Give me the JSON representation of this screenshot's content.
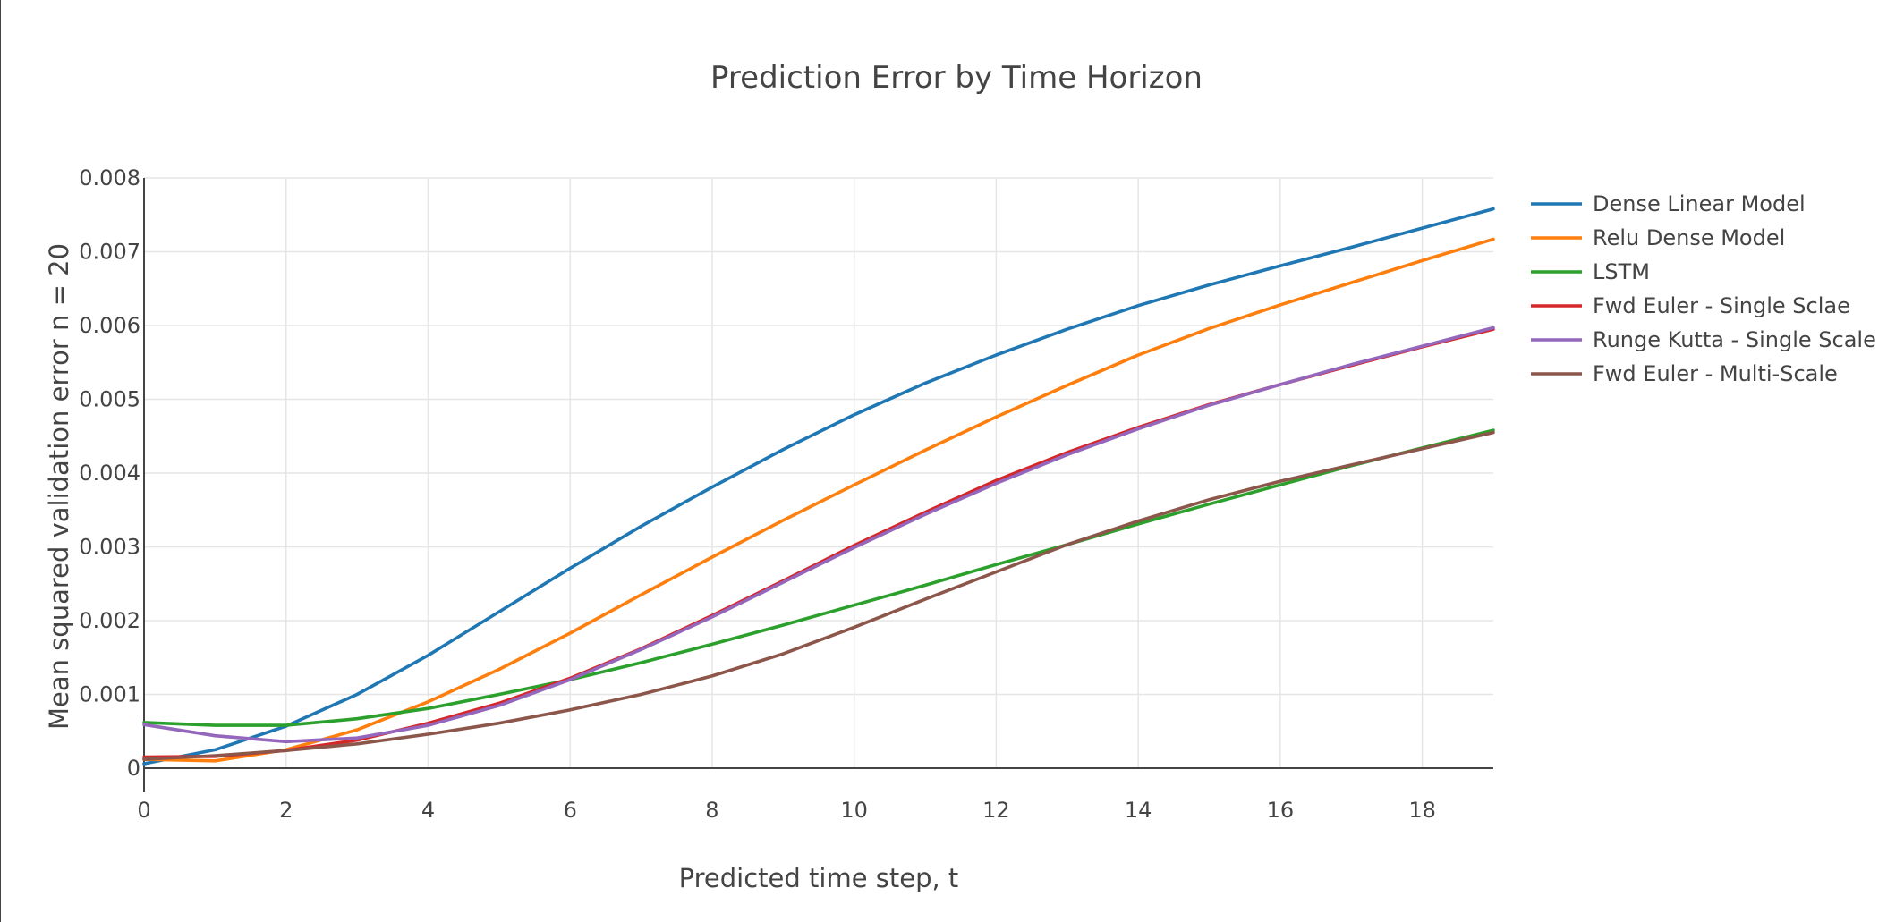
{
  "chart_data": {
    "type": "line",
    "title": "Prediction Error by Time Horizon",
    "xlabel": "Predicted time step, t",
    "ylabel": "Mean squared validation error n = 20",
    "xlim": [
      0,
      19
    ],
    "ylim": [
      0,
      0.008
    ],
    "xticks": [
      0,
      2,
      4,
      6,
      8,
      10,
      12,
      14,
      16,
      18
    ],
    "yticks": [
      0,
      0.001,
      0.002,
      0.003,
      0.004,
      0.005,
      0.006,
      0.007,
      0.008
    ],
    "ytick_labels": [
      "0",
      "0.001",
      "0.002",
      "0.003",
      "0.004",
      "0.005",
      "0.006",
      "0.007",
      "0.008"
    ],
    "grid": true,
    "legend_position": "right",
    "x": [
      0,
      1,
      2,
      3,
      4,
      5,
      6,
      7,
      8,
      9,
      10,
      11,
      12,
      13,
      14,
      15,
      16,
      17,
      18,
      19
    ],
    "series": [
      {
        "name": "Dense Linear Model",
        "color": "#1f77b4",
        "values": [
          6e-05,
          0.00025,
          0.00057,
          0.001,
          0.00153,
          0.00212,
          0.00271,
          0.00328,
          0.00381,
          0.00432,
          0.00479,
          0.00522,
          0.0056,
          0.00595,
          0.00627,
          0.00655,
          0.00681,
          0.00706,
          0.00732,
          0.00758
        ]
      },
      {
        "name": "Relu Dense Model",
        "color": "#ff7f0e",
        "values": [
          0.00012,
          0.0001,
          0.00025,
          0.00052,
          0.0009,
          0.00134,
          0.00183,
          0.00235,
          0.00286,
          0.00336,
          0.00384,
          0.00431,
          0.00476,
          0.00519,
          0.0056,
          0.00596,
          0.00628,
          0.00658,
          0.00688,
          0.00717
        ]
      },
      {
        "name": "LSTM",
        "color": "#2ca02c",
        "values": [
          0.00062,
          0.00058,
          0.00058,
          0.00067,
          0.00081,
          0.001,
          0.0012,
          0.00143,
          0.00168,
          0.00194,
          0.00221,
          0.00248,
          0.00276,
          0.00303,
          0.00331,
          0.00358,
          0.00384,
          0.0041,
          0.00434,
          0.00458
        ]
      },
      {
        "name": "Fwd Euler - Single Sclae",
        "color": "#d62728",
        "values": [
          0.00015,
          0.00016,
          0.00024,
          0.00038,
          0.00061,
          0.00088,
          0.00122,
          0.00162,
          0.00207,
          0.00254,
          0.00302,
          0.00347,
          0.0039,
          0.00428,
          0.00462,
          0.00493,
          0.0052,
          0.00546,
          0.00571,
          0.00595
        ]
      },
      {
        "name": "Runge Kutta - Single Scale",
        "color": "#9467bd",
        "values": [
          0.00059,
          0.00044,
          0.00036,
          0.00041,
          0.00058,
          0.00085,
          0.0012,
          0.00161,
          0.00205,
          0.00252,
          0.00299,
          0.00344,
          0.00386,
          0.00425,
          0.0046,
          0.00492,
          0.0052,
          0.00547,
          0.00572,
          0.00597
        ]
      },
      {
        "name": "Fwd Euler - Multi-Scale",
        "color": "#8c564b",
        "values": [
          0.00012,
          0.00017,
          0.00024,
          0.00033,
          0.00046,
          0.00061,
          0.00079,
          0.001,
          0.00125,
          0.00155,
          0.00191,
          0.00229,
          0.00266,
          0.00303,
          0.00335,
          0.00364,
          0.00389,
          0.00411,
          0.00433,
          0.00455
        ]
      }
    ]
  }
}
